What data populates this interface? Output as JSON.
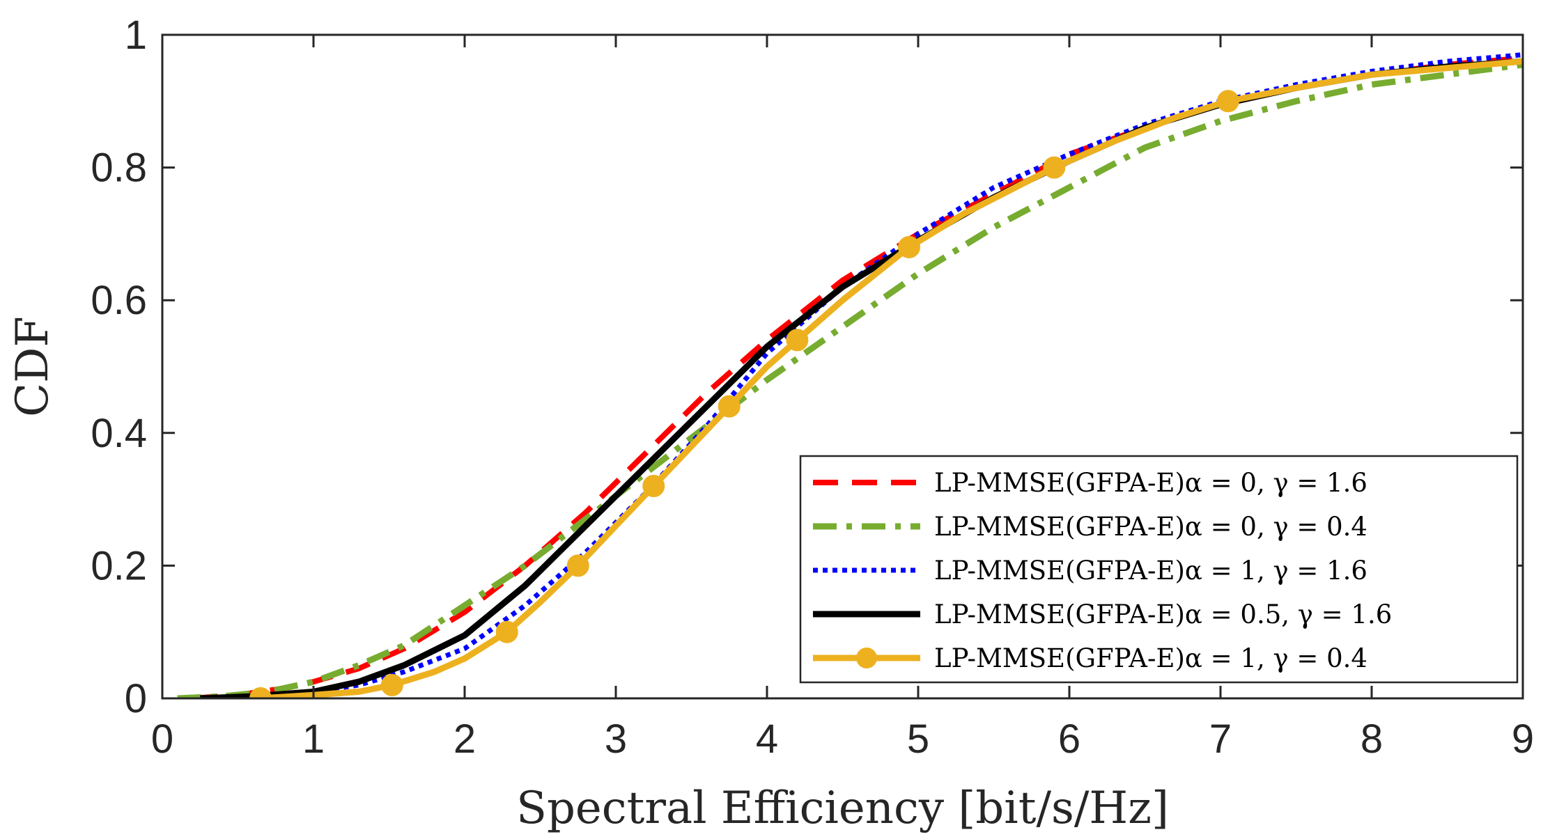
{
  "chart_data": {
    "type": "line",
    "title": "",
    "xlabel": "Spectral Efficiency [bit/s/Hz]",
    "ylabel": "CDF",
    "xlim": [
      0,
      9
    ],
    "ylim": [
      0,
      1
    ],
    "xticks": [
      0,
      1,
      2,
      3,
      4,
      5,
      6,
      7,
      8,
      9
    ],
    "yticks": [
      0,
      0.2,
      0.4,
      0.6,
      0.8,
      1
    ],
    "xtick_labels": [
      "0",
      "1",
      "2",
      "3",
      "4",
      "5",
      "6",
      "7",
      "8",
      "9"
    ],
    "ytick_labels": [
      "0",
      "0.2",
      "0.4",
      "0.6",
      "0.8",
      "1"
    ],
    "grid": false,
    "legend_position": "bottom-right",
    "series": [
      {
        "name": "LP-MMSE(GFPA-E)α = 0, γ = 1.6",
        "color": "#ff0000",
        "style": "dashed",
        "x": [
          0.2,
          0.5,
          0.8,
          1.0,
          1.3,
          1.6,
          2.0,
          2.4,
          2.8,
          3.2,
          3.6,
          4.0,
          4.5,
          5.0,
          5.5,
          6.0,
          6.5,
          7.0,
          7.5,
          8.0,
          8.5,
          9.0
        ],
        "y": [
          0.0,
          0.005,
          0.015,
          0.025,
          0.045,
          0.075,
          0.13,
          0.2,
          0.28,
          0.37,
          0.46,
          0.54,
          0.63,
          0.7,
          0.76,
          0.82,
          0.86,
          0.895,
          0.92,
          0.94,
          0.955,
          0.965
        ]
      },
      {
        "name": "LP-MMSE(GFPA-E)α = 0, γ = 0.4",
        "color": "#77ac30",
        "style": "dashdot",
        "x": [
          0.1,
          0.4,
          0.7,
          1.0,
          1.3,
          1.6,
          2.0,
          2.4,
          2.8,
          3.2,
          3.6,
          4.0,
          4.5,
          5.0,
          5.5,
          6.0,
          6.5,
          7.0,
          7.5,
          8.0,
          8.5,
          9.0
        ],
        "y": [
          0.0,
          0.003,
          0.01,
          0.025,
          0.05,
          0.08,
          0.14,
          0.2,
          0.27,
          0.34,
          0.41,
          0.48,
          0.56,
          0.64,
          0.71,
          0.77,
          0.83,
          0.87,
          0.9,
          0.925,
          0.94,
          0.955
        ]
      },
      {
        "name": "LP-MMSE(GFPA-E)α = 1, γ = 1.6",
        "color": "#0000ff",
        "style": "dotted",
        "x": [
          0.3,
          0.6,
          1.0,
          1.3,
          1.6,
          2.0,
          2.4,
          2.8,
          3.2,
          3.6,
          4.0,
          4.5,
          5.0,
          5.5,
          6.0,
          6.5,
          7.0,
          7.5,
          8.0,
          8.5,
          9.0
        ],
        "y": [
          0.0,
          0.003,
          0.01,
          0.02,
          0.04,
          0.075,
          0.14,
          0.22,
          0.31,
          0.41,
          0.52,
          0.62,
          0.7,
          0.77,
          0.82,
          0.865,
          0.9,
          0.925,
          0.945,
          0.96,
          0.97
        ]
      },
      {
        "name": "LP-MMSE(GFPA-E)α = 0.5, γ = 1.6",
        "color": "#000000",
        "style": "solid",
        "x": [
          0.25,
          0.6,
          1.0,
          1.3,
          1.6,
          2.0,
          2.4,
          2.8,
          3.2,
          3.6,
          4.0,
          4.5,
          5.0,
          5.5,
          6.0,
          6.5,
          7.0,
          7.5,
          8.0,
          8.5,
          9.0
        ],
        "y": [
          0.0,
          0.003,
          0.01,
          0.025,
          0.05,
          0.095,
          0.17,
          0.26,
          0.35,
          0.44,
          0.53,
          0.62,
          0.69,
          0.755,
          0.81,
          0.86,
          0.895,
          0.92,
          0.94,
          0.952,
          0.96
        ]
      },
      {
        "name": "LP-MMSE(GFPA-E)α = 1, γ = 0.4",
        "color": "#edb120",
        "style": "solid-marker",
        "x": [
          0.65,
          1.0,
          1.3,
          1.52,
          1.8,
          2.0,
          2.28,
          2.5,
          2.75,
          3.0,
          3.25,
          3.5,
          3.75,
          4.0,
          4.2,
          4.5,
          4.94,
          5.3,
          5.6,
          5.9,
          6.3,
          6.7,
          7.05,
          7.5,
          8.0,
          8.5,
          9.0
        ],
        "y": [
          0.0,
          0.005,
          0.01,
          0.02,
          0.04,
          0.06,
          0.1,
          0.145,
          0.2,
          0.26,
          0.32,
          0.38,
          0.44,
          0.5,
          0.54,
          0.6,
          0.68,
          0.73,
          0.765,
          0.8,
          0.84,
          0.875,
          0.9,
          0.92,
          0.94,
          0.95,
          0.96
        ],
        "markers_x": [
          0.65,
          1.52,
          2.28,
          2.75,
          3.25,
          3.75,
          4.2,
          4.94,
          5.9,
          7.05
        ],
        "markers_y": [
          0.0,
          0.02,
          0.1,
          0.2,
          0.32,
          0.44,
          0.54,
          0.68,
          0.8,
          0.9
        ]
      }
    ]
  }
}
